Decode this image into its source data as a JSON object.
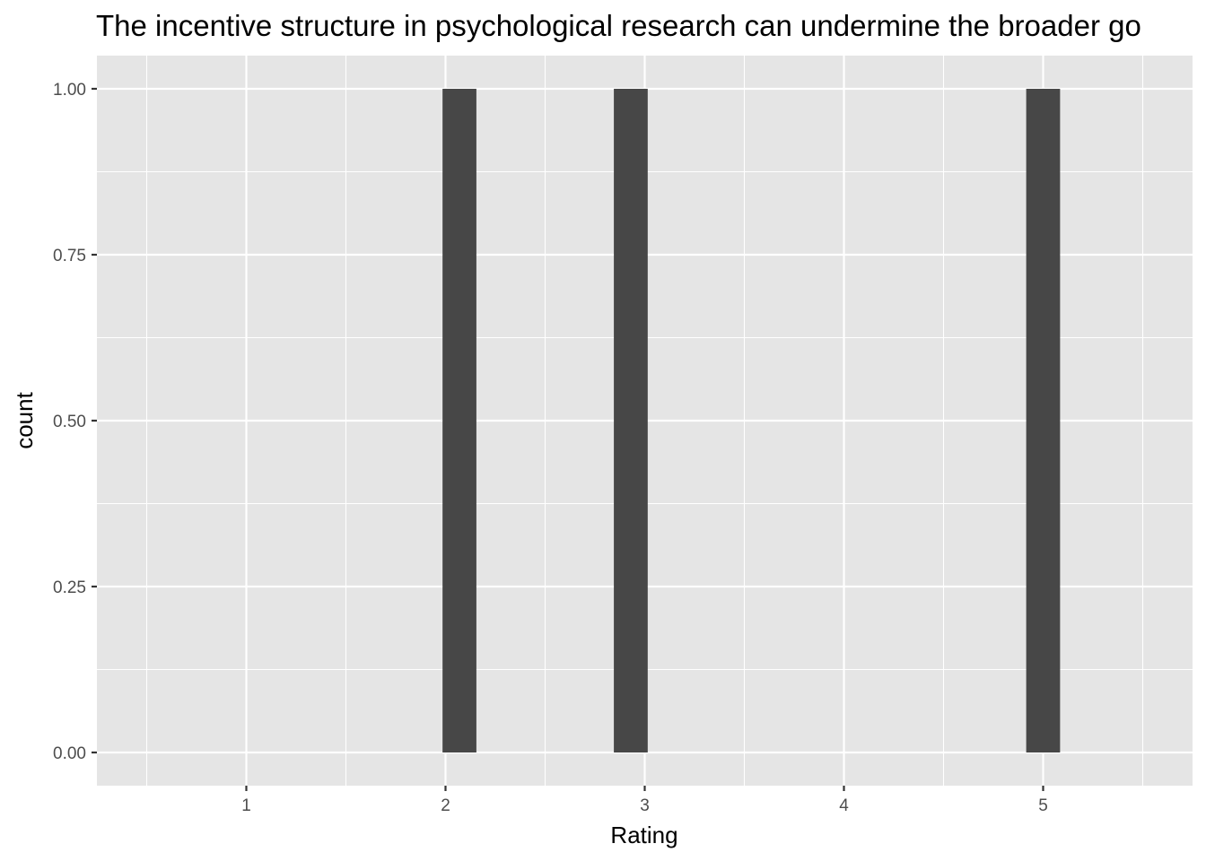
{
  "chart_data": {
    "type": "bar",
    "title": "The incentive structure in psychological research can undermine the broader go",
    "xlabel": "Rating",
    "ylabel": "count",
    "x_ticks": [
      "1",
      "2",
      "3",
      "4",
      "5"
    ],
    "y_ticks": [
      "0.00",
      "0.25",
      "0.50",
      "0.75",
      "1.00"
    ],
    "xlim": [
      0.25,
      5.75
    ],
    "ylim": [
      -0.05,
      1.05
    ],
    "bars": [
      {
        "x": 2.07,
        "value": 1
      },
      {
        "x": 2.93,
        "value": 1
      },
      {
        "x": 5.0,
        "value": 1
      }
    ],
    "bar_width": 0.17,
    "grid": true,
    "legend": "none",
    "colors": {
      "panel": "#e5e5e5",
      "grid": "#ffffff",
      "bar": "#474747",
      "tick": "#4d4d4d"
    }
  }
}
